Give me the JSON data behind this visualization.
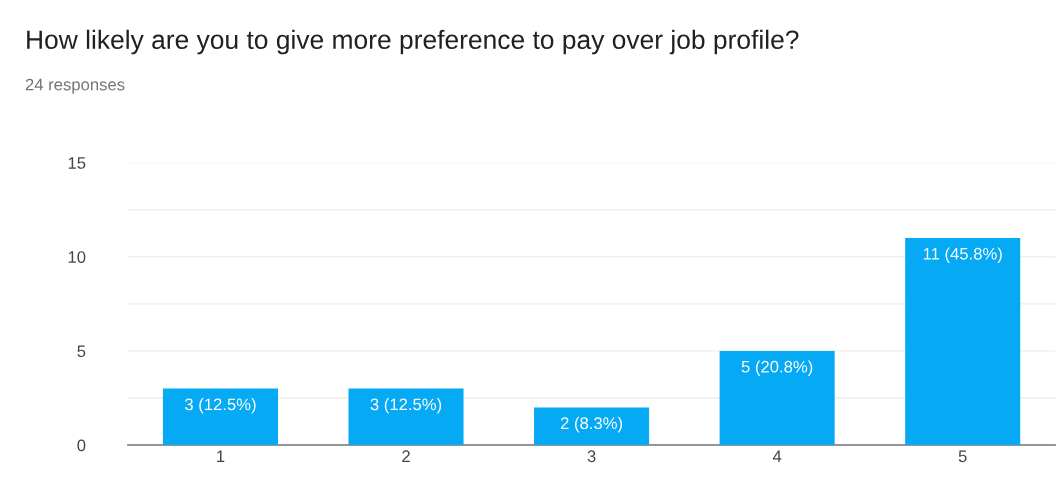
{
  "chart_data": {
    "type": "bar",
    "title": "How likely are you to give more preference to pay over job profile?",
    "subtitle": "24 responses",
    "categories": [
      "1",
      "2",
      "3",
      "4",
      "5"
    ],
    "values": [
      3,
      3,
      2,
      5,
      11
    ],
    "value_labels": [
      "3 (12.5%)",
      "3 (12.5%)",
      "2 (8.3%)",
      "5 (20.8%)",
      "11 (45.8%)"
    ],
    "color": "#05a9f4",
    "ylim": [
      0,
      15
    ],
    "yticks": [
      0,
      {
        "value": 2.5,
        "label": null
      },
      5,
      {
        "value": 7.5,
        "label": null
      },
      10,
      {
        "value": 12.5,
        "label": null
      },
      15
    ],
    "grid": "y"
  }
}
